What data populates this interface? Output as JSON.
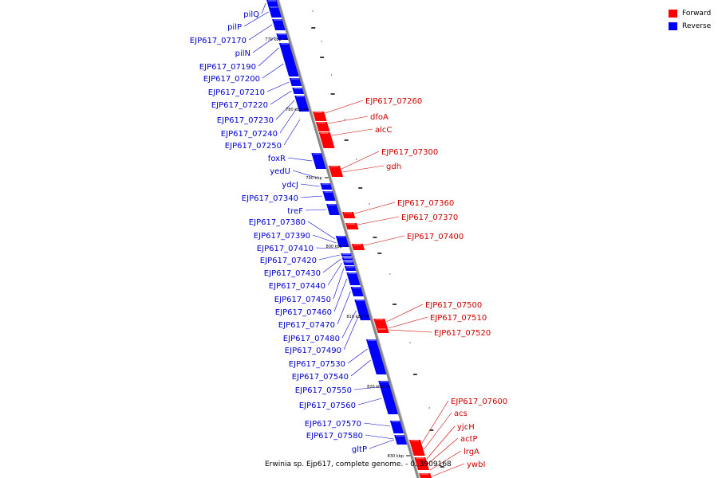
{
  "legend": {
    "items": [
      {
        "label": "Forward",
        "color": "#ff0000"
      },
      {
        "label": "Reverse",
        "color": "#0000ff"
      }
    ]
  },
  "caption": "Erwinia sp. Ejp617, complete genome. - 0..3909168",
  "colors": {
    "forward": "#ff0000",
    "reverse": "#0000ff",
    "backbone": "#888888",
    "label_forward": "#cc0000",
    "label_reverse": "#0000cc"
  },
  "scale_ticks": [
    "770 kbp",
    "780 kbp",
    "790 kbp",
    "800 kbp",
    "810 kbp",
    "820 kbp",
    "830 kbp"
  ],
  "reverse_genes": [
    "pilQ",
    "pilP",
    "EJP617_07170",
    "pilN",
    "EJP617_07190",
    "EJP617_07200",
    "EJP617_07210",
    "EJP617_07220",
    "EJP617_07230",
    "EJP617_07240",
    "EJP617_07250",
    "foxR",
    "yedU",
    "ydcJ",
    "EJP617_07340",
    "treF",
    "EJP617_07380",
    "EJP617_07390",
    "EJP617_07410",
    "EJP617_07420",
    "EJP617_07430",
    "EJP617_07440",
    "EJP617_07450",
    "EJP617_07460",
    "EJP617_07470",
    "EJP617_07480",
    "EJP617_07490",
    "EJP617_07530",
    "EJP617_07540",
    "EJP617_07550",
    "EJP617_07560",
    "EJP617_07570",
    "EJP617_07580",
    "gltP"
  ],
  "forward_genes": [
    "EJP617_07260",
    "dfoA",
    "alcC",
    "EJP617_07300",
    "gdh",
    "EJP617_07360",
    "EJP617_07370",
    "EJP617_07400",
    "EJP617_07500",
    "EJP617_07510",
    "EJP617_07520",
    "EJP617_07600",
    "acs",
    "yjcH",
    "actP",
    "lrgA",
    "ywbI"
  ]
}
